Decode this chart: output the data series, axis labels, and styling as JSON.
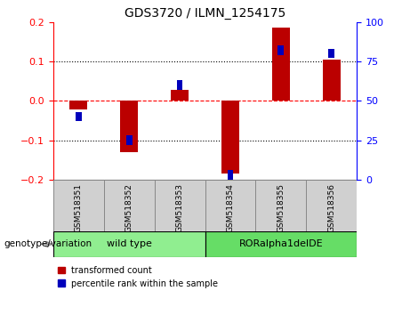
{
  "title": "GDS3720 / ILMN_1254175",
  "samples": [
    "GSM518351",
    "GSM518352",
    "GSM518353",
    "GSM518354",
    "GSM518355",
    "GSM518356"
  ],
  "red_values": [
    -0.022,
    -0.13,
    0.028,
    -0.185,
    0.185,
    0.105
  ],
  "blue_values_pct": [
    40,
    25,
    60,
    3,
    82,
    80
  ],
  "ylim_left": [
    -0.2,
    0.2
  ],
  "ylim_right": [
    0,
    100
  ],
  "yticks_left": [
    -0.2,
    -0.1,
    0.0,
    0.1,
    0.2
  ],
  "yticks_right": [
    0,
    25,
    50,
    75,
    100
  ],
  "groups": [
    {
      "label": "wild type",
      "samples": [
        0,
        1,
        2
      ],
      "color": "#90EE90"
    },
    {
      "label": "RORalpha1delDE",
      "samples": [
        3,
        4,
        5
      ],
      "color": "#66DD66"
    }
  ],
  "group_label": "genotype/variation",
  "legend_red": "transformed count",
  "legend_blue": "percentile rank within the sample",
  "red_color": "#BB0000",
  "blue_color": "#0000BB",
  "red_bar_width": 0.35,
  "blue_square_size": 0.012,
  "blue_bar_width": 0.12
}
